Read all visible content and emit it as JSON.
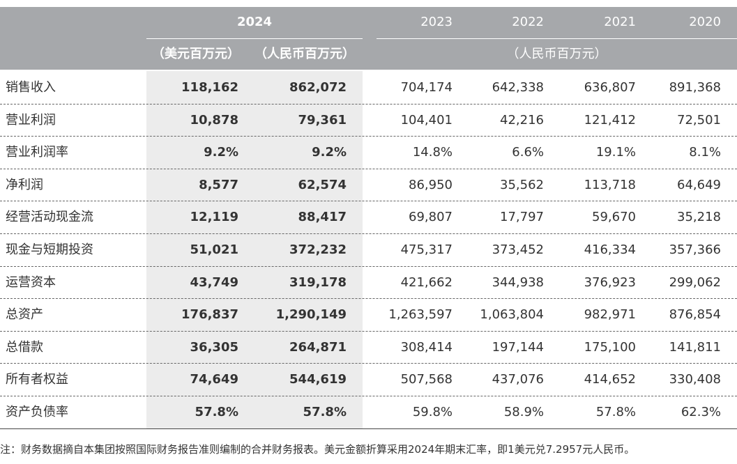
{
  "header": {
    "year_main": "2024",
    "years": [
      "2023",
      "2022",
      "2021",
      "2020"
    ],
    "unit_usd": "（美元百万元）",
    "unit_cny": "（人民币百万元）",
    "unit_cny_others": "（人民币百万元）"
  },
  "table": {
    "rows": [
      [
        "销售收入",
        "118,162",
        "862,072",
        "704,174",
        "642,338",
        "636,807",
        "891,368"
      ],
      [
        "营业利润",
        "10,878",
        "79,361",
        "104,401",
        "42,216",
        "121,412",
        "72,501"
      ],
      [
        "营业利润率",
        "9.2%",
        "9.2%",
        "14.8%",
        "6.6%",
        "19.1%",
        "8.1%"
      ],
      [
        "净利润",
        "8,577",
        "62,574",
        "86,950",
        "35,562",
        "113,718",
        "64,649"
      ],
      [
        "经营活动现金流",
        "12,119",
        "88,417",
        "69,807",
        "17,797",
        "59,670",
        "35,218"
      ],
      [
        "现金与短期投资",
        "51,021",
        "372,232",
        "475,317",
        "373,452",
        "416,334",
        "357,366"
      ],
      [
        "运营资本",
        "43,749",
        "319,178",
        "421,662",
        "344,938",
        "376,923",
        "299,062"
      ],
      [
        "总资产",
        "176,837",
        "1,290,149",
        "1,263,597",
        "1,063,804",
        "982,971",
        "876,854"
      ],
      [
        "总借款",
        "36,305",
        "264,871",
        "308,414",
        "197,144",
        "175,100",
        "141,811"
      ],
      [
        "所有者权益",
        "74,649",
        "544,619",
        "507,568",
        "437,076",
        "414,652",
        "330,408"
      ],
      [
        "资产负债率",
        "57.8%",
        "57.8%",
        "59.8%",
        "58.9%",
        "57.8%",
        "62.3%"
      ]
    ]
  },
  "footnote": "注：财务数据摘自本集团按照国际财务报告准则编制的合并财务报表。美元金额折算采用2024年期末汇率，即1美元兑7.2957元人民币。"
}
